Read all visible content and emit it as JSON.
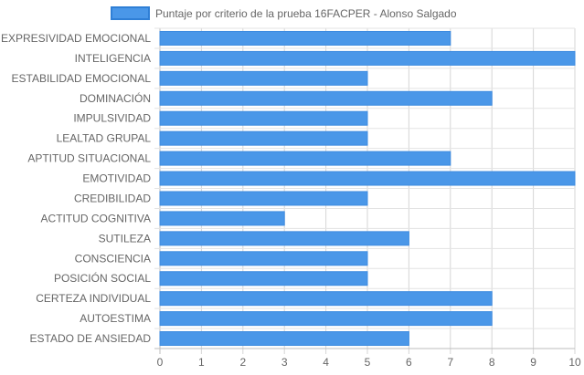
{
  "chart_data": {
    "type": "bar",
    "orientation": "horizontal",
    "categories": [
      "EXPRESIVIDAD EMOCIONAL",
      "INTELIGENCIA",
      "ESTABILIDAD EMOCIONAL",
      "DOMINACIÓN",
      "IMPULSIVIDAD",
      "LEALTAD GRUPAL",
      "APTITUD SITUACIONAL",
      "EMOTIVIDAD",
      "CREDIBILIDAD",
      "ACTITUD COGNITIVA",
      "SUTILEZA",
      "CONSCIENCIA",
      "POSICIÓN SOCIAL",
      "CERTEZA INDIVIDUAL",
      "AUTOESTIMA",
      "ESTADO DE ANSIEDAD"
    ],
    "series": [
      {
        "name": "Puntaje por criterio de la prueba 16FACPER - Alonso Salgado",
        "color": "#4a97e8",
        "values": [
          7,
          10,
          5,
          8,
          5,
          5,
          7,
          10,
          5,
          3,
          6,
          5,
          5,
          8,
          8,
          6
        ]
      }
    ],
    "xlim": [
      0,
      10
    ],
    "xticks": [
      "0",
      "1",
      "2",
      "3",
      "4",
      "5",
      "6",
      "7",
      "8",
      "9",
      "10"
    ],
    "grid": true,
    "legend_position": "top"
  }
}
